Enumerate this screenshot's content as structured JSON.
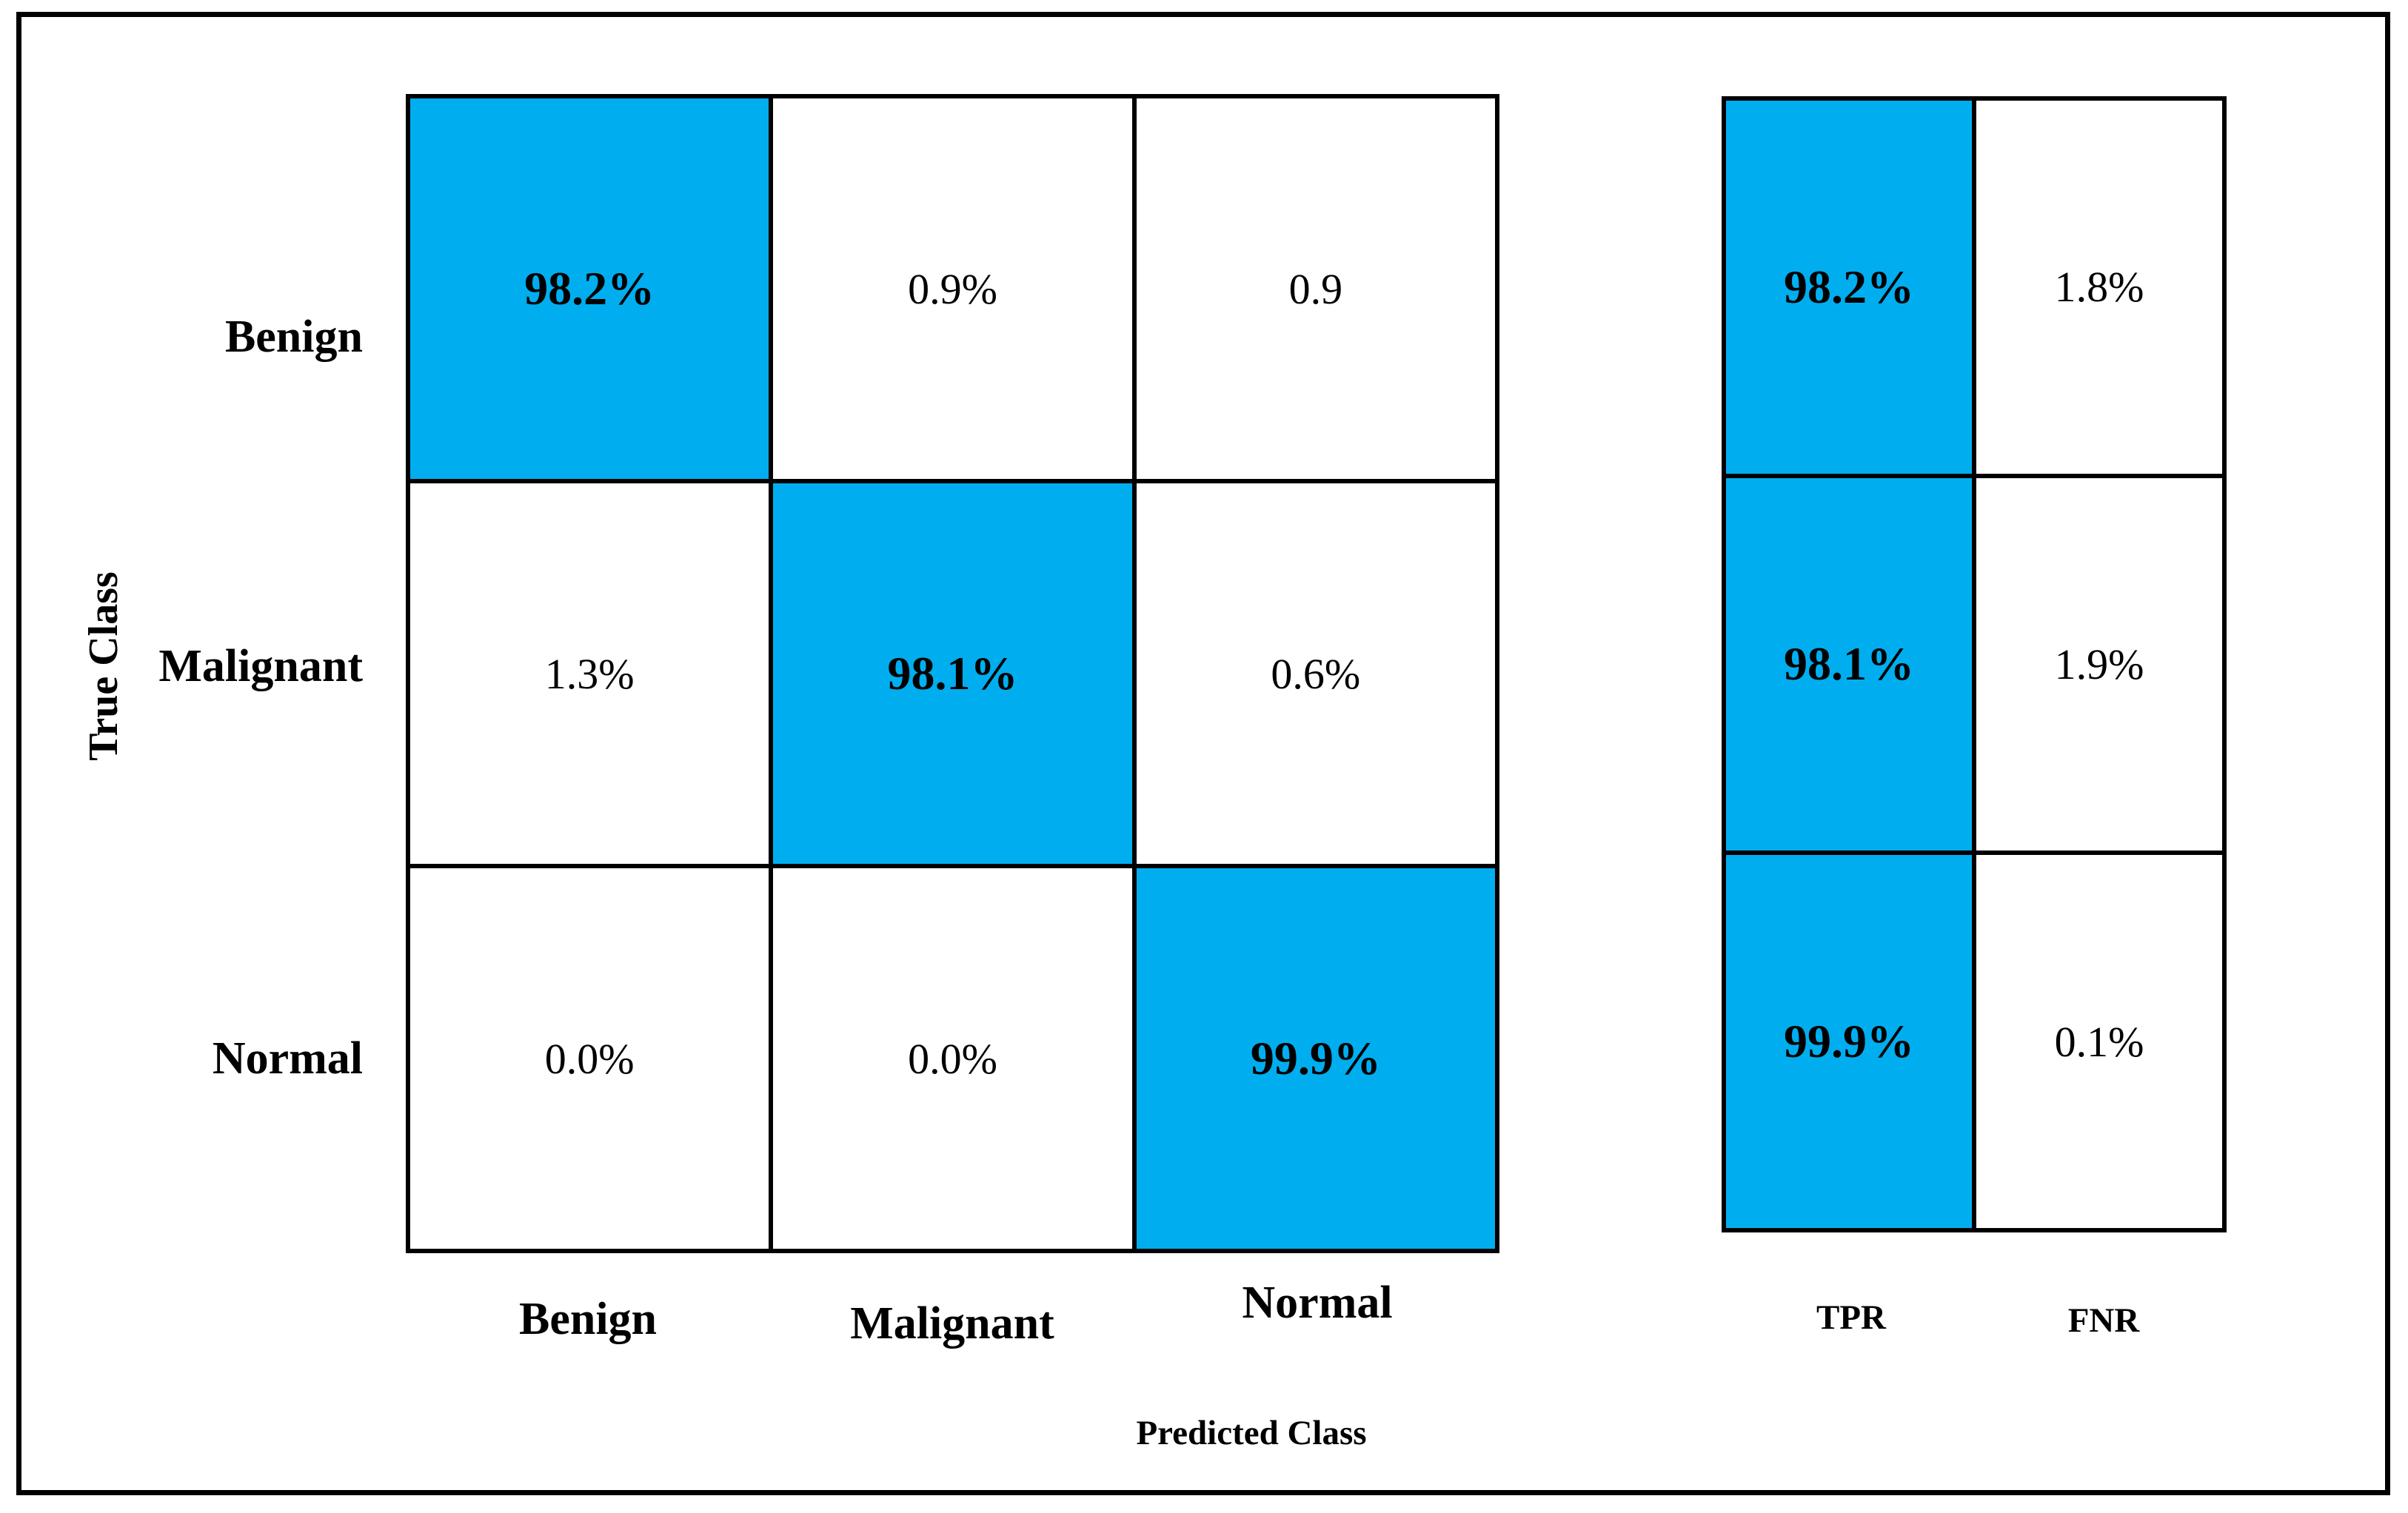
{
  "colors": {
    "highlight_blue": "#00AEEF",
    "cell_white": "#FFFFFF",
    "line_black": "#000000"
  },
  "axes": {
    "x_label": "Predicted Class",
    "y_label": "True Class"
  },
  "matrix": {
    "row_labels": [
      "Benign",
      "Malignant",
      "Normal"
    ],
    "col_labels": [
      "Benign",
      "Malignant",
      "Normal"
    ],
    "rows": [
      [
        "98.2%",
        "0.9%",
        "0.9"
      ],
      [
        "1.3%",
        "98.1%",
        "0.6%"
      ],
      [
        "0.0%",
        "0.0%",
        "99.9%"
      ]
    ]
  },
  "summary": {
    "col_labels": [
      "TPR",
      "FNR"
    ],
    "rows": [
      [
        "98.2%",
        "1.8%"
      ],
      [
        "98.1%",
        "1.9%"
      ],
      [
        "99.9%",
        "0.1%"
      ]
    ]
  },
  "chart_data": {
    "type": "heatmap",
    "subtype": "confusion-matrix",
    "title": "",
    "xlabel": "Predicted Class",
    "ylabel": "True Class",
    "classes": [
      "Benign",
      "Malignant",
      "Normal"
    ],
    "matrix_text": [
      [
        "98.2%",
        "0.9%",
        "0.9"
      ],
      [
        "1.3%",
        "98.1%",
        "0.6%"
      ],
      [
        "0.0%",
        "0.0%",
        "99.9%"
      ]
    ],
    "matrix_percent": [
      [
        98.2,
        0.9,
        0.9
      ],
      [
        1.3,
        98.1,
        0.6
      ],
      [
        0.0,
        0.0,
        99.9
      ]
    ],
    "row_normalized": true,
    "summary_columns": [
      "TPR",
      "FNR"
    ],
    "summary_percent": [
      [
        98.2,
        1.8
      ],
      [
        98.1,
        1.9
      ],
      [
        99.9,
        0.1
      ]
    ],
    "diagonal_highlight_color": "#00AEEF",
    "grid": "on",
    "legend": "none"
  }
}
